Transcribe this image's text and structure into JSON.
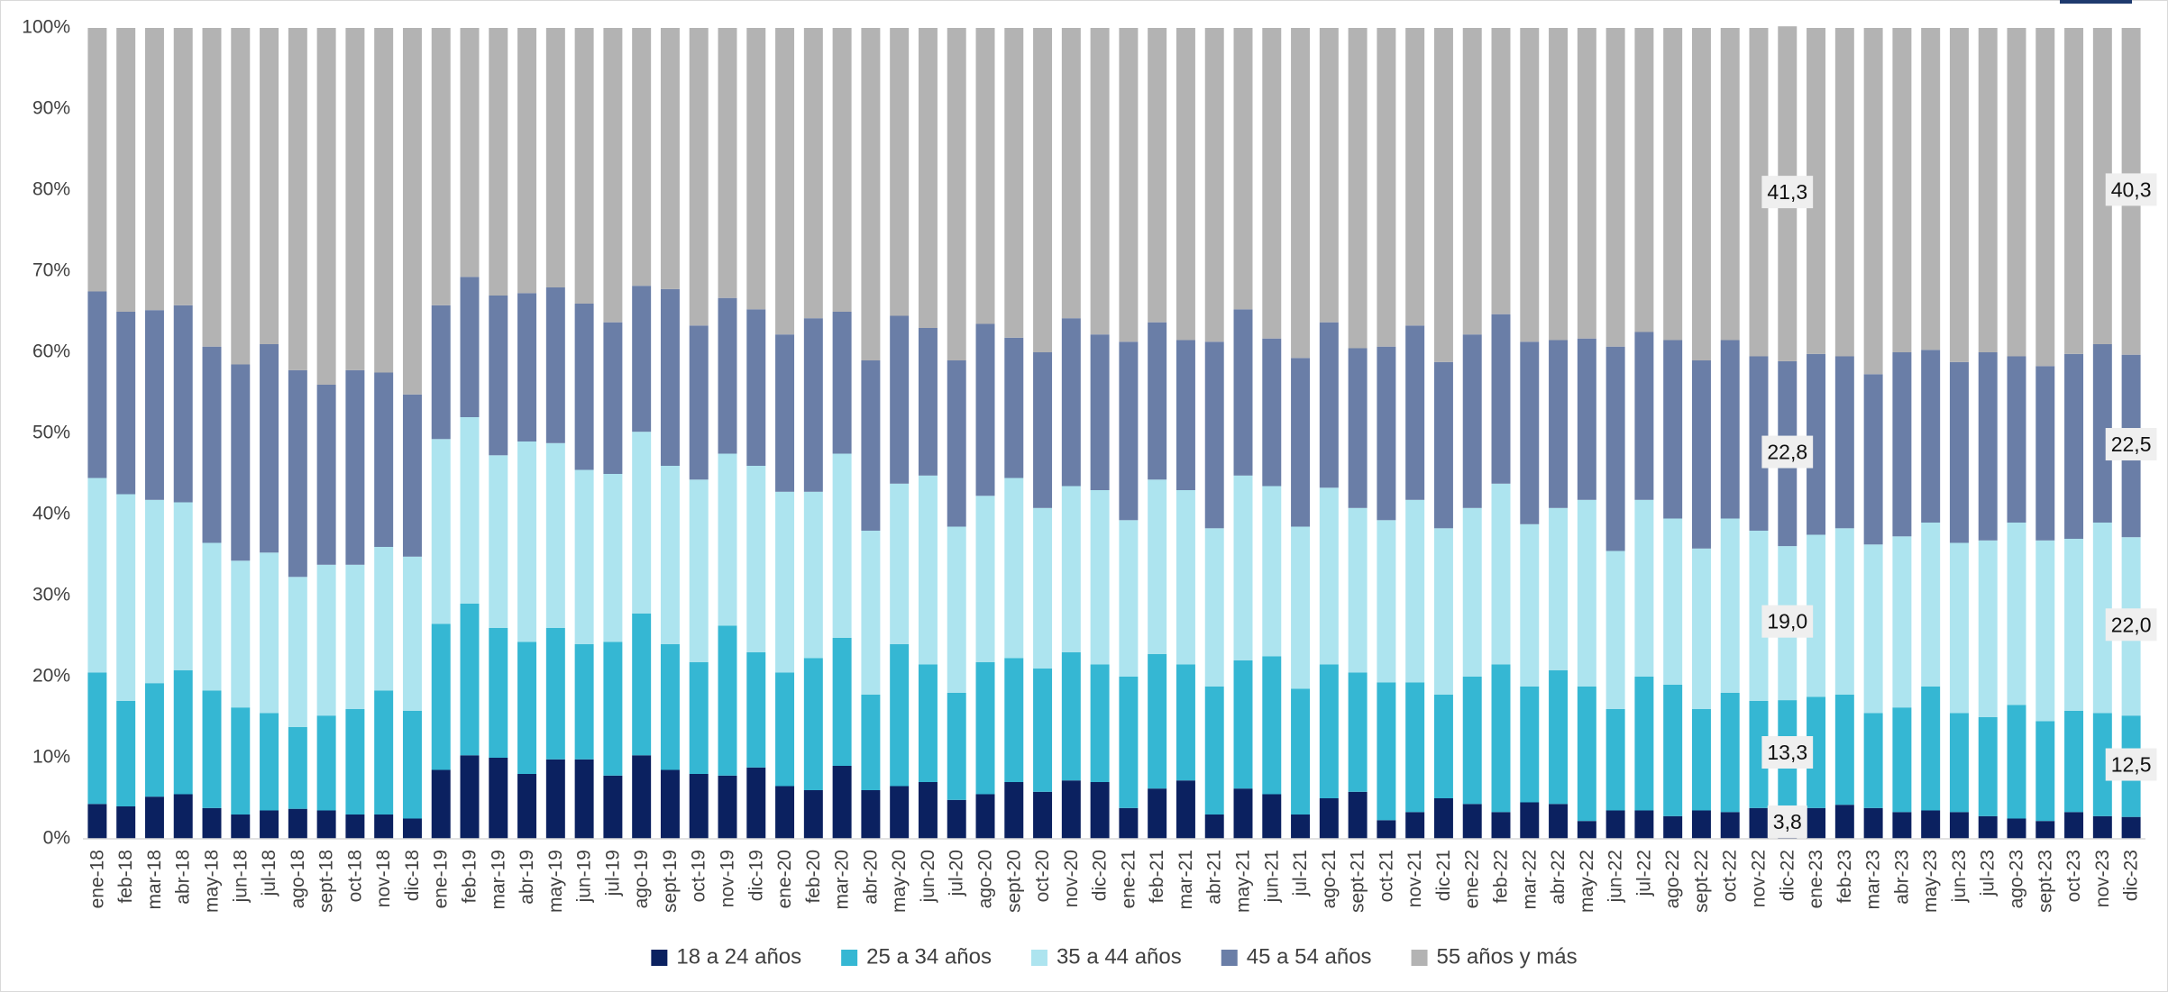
{
  "chart_data": {
    "type": "stacked_bar_percent",
    "categories": [
      "ene-18",
      "feb-18",
      "mar-18",
      "abr-18",
      "may-18",
      "jun-18",
      "jul-18",
      "ago-18",
      "sept-18",
      "oct-18",
      "nov-18",
      "dic-18",
      "ene-19",
      "feb-19",
      "mar-19",
      "abr-19",
      "may-19",
      "jun-19",
      "jul-19",
      "ago-19",
      "sept-19",
      "oct-19",
      "nov-19",
      "dic-19",
      "ene-20",
      "feb-20",
      "mar-20",
      "abr-20",
      "may-20",
      "jun-20",
      "jul-20",
      "ago-20",
      "sept-20",
      "oct-20",
      "nov-20",
      "dic-20",
      "ene-21",
      "feb-21",
      "mar-21",
      "abr-21",
      "may-21",
      "jun-21",
      "jul-21",
      "ago-21",
      "sept-21",
      "oct-21",
      "nov-21",
      "dic-21",
      "ene-22",
      "feb-22",
      "mar-22",
      "abr-22",
      "may-22",
      "jun-22",
      "jul-22",
      "ago-22",
      "sept-22",
      "oct-22",
      "nov-22",
      "dic-22",
      "ene-23",
      "feb-23",
      "mar-23",
      "abr-23",
      "may-23",
      "jun-23",
      "jul-23",
      "ago-23",
      "sept-23",
      "oct-23",
      "nov-23",
      "dic-23"
    ],
    "series": [
      {
        "name": "18 a 24 años",
        "color": "#0b2160",
        "values": [
          4.3,
          4.0,
          5.2,
          5.5,
          3.8,
          3.0,
          3.5,
          3.7,
          3.5,
          3.0,
          3.0,
          2.5,
          8.5,
          10.3,
          10.0,
          8.0,
          9.8,
          9.8,
          7.8,
          10.3,
          8.5,
          8.0,
          7.8,
          8.8,
          6.5,
          6.0,
          9.0,
          6.0,
          6.5,
          7.0,
          4.8,
          5.5,
          7.0,
          5.8,
          7.2,
          7.0,
          3.8,
          6.2,
          7.2,
          3.0,
          6.2,
          5.5,
          3.0,
          5.0,
          5.8,
          2.3,
          3.3,
          5.0,
          4.3,
          3.3,
          4.5,
          4.3,
          2.2,
          3.5,
          3.5,
          2.8,
          3.5,
          3.3,
          3.8,
          3.8,
          3.8,
          4.2,
          3.8,
          3.3,
          3.5,
          3.3,
          2.8,
          2.5,
          2.2,
          3.3,
          2.8,
          2.7
        ],
        "value_labels": [
          null,
          null,
          null,
          null,
          null,
          null,
          null,
          null,
          null,
          null,
          null,
          null,
          null,
          null,
          null,
          null,
          null,
          null,
          null,
          null,
          null,
          null,
          null,
          null,
          null,
          null,
          null,
          null,
          null,
          null,
          null,
          null,
          null,
          null,
          null,
          null,
          null,
          null,
          null,
          null,
          null,
          null,
          null,
          null,
          null,
          null,
          null,
          null,
          null,
          null,
          null,
          null,
          null,
          null,
          null,
          null,
          null,
          null,
          null,
          "3,8",
          null,
          null,
          null,
          null,
          null,
          null,
          null,
          null,
          null,
          null,
          null,
          null
        ]
      },
      {
        "name": "25 a 34 años",
        "color": "#35b7d3",
        "values": [
          16.2,
          13.0,
          14.0,
          15.3,
          14.5,
          13.2,
          12.0,
          10.1,
          11.7,
          13.0,
          15.3,
          13.3,
          18.0,
          18.7,
          16.0,
          16.3,
          16.2,
          14.2,
          16.5,
          17.5,
          15.5,
          13.8,
          18.5,
          14.2,
          14.0,
          16.3,
          15.8,
          11.8,
          17.5,
          14.5,
          13.2,
          16.3,
          15.3,
          15.2,
          15.8,
          14.5,
          16.2,
          16.6,
          14.3,
          15.8,
          15.8,
          17.0,
          15.5,
          16.5,
          14.7,
          17.0,
          16.0,
          12.8,
          15.7,
          18.2,
          14.3,
          16.5,
          16.6,
          12.5,
          16.5,
          16.2,
          12.5,
          14.7,
          13.2,
          13.3,
          13.7,
          13.6,
          11.7,
          12.9,
          15.3,
          12.2,
          12.2,
          14.0,
          12.3,
          12.5,
          12.7,
          12.5
        ],
        "value_labels": [
          null,
          null,
          null,
          null,
          null,
          null,
          null,
          null,
          null,
          null,
          null,
          null,
          null,
          null,
          null,
          null,
          null,
          null,
          null,
          null,
          null,
          null,
          null,
          null,
          null,
          null,
          null,
          null,
          null,
          null,
          null,
          null,
          null,
          null,
          null,
          null,
          null,
          null,
          null,
          null,
          null,
          null,
          null,
          null,
          null,
          null,
          null,
          null,
          null,
          null,
          null,
          null,
          null,
          null,
          null,
          null,
          null,
          null,
          null,
          "13,3",
          null,
          null,
          null,
          null,
          null,
          null,
          null,
          null,
          null,
          null,
          null,
          "12,5"
        ]
      },
      {
        "name": "35 a 44 años",
        "color": "#ade4ef",
        "values": [
          24.0,
          25.5,
          22.6,
          20.7,
          18.2,
          18.1,
          19.8,
          18.5,
          18.6,
          17.8,
          17.7,
          19.0,
          22.8,
          23.0,
          21.3,
          24.7,
          22.8,
          21.5,
          20.7,
          22.4,
          22.0,
          22.5,
          21.2,
          23.0,
          22.3,
          20.5,
          22.7,
          20.2,
          19.8,
          23.3,
          20.5,
          20.5,
          22.2,
          19.8,
          20.5,
          21.5,
          19.3,
          21.5,
          21.5,
          19.5,
          22.8,
          21.0,
          20.0,
          21.8,
          20.3,
          20.0,
          22.5,
          20.5,
          20.8,
          22.3,
          20.0,
          20.0,
          23.0,
          19.5,
          21.8,
          20.5,
          19.8,
          21.5,
          21.0,
          19.0,
          20.0,
          20.5,
          20.8,
          21.1,
          20.2,
          21.0,
          21.8,
          22.5,
          22.3,
          21.2,
          23.5,
          22.0
        ],
        "value_labels": [
          null,
          null,
          null,
          null,
          null,
          null,
          null,
          null,
          null,
          null,
          null,
          null,
          null,
          null,
          null,
          null,
          null,
          null,
          null,
          null,
          null,
          null,
          null,
          null,
          null,
          null,
          null,
          null,
          null,
          null,
          null,
          null,
          null,
          null,
          null,
          null,
          null,
          null,
          null,
          null,
          null,
          null,
          null,
          null,
          null,
          null,
          null,
          null,
          null,
          null,
          null,
          null,
          null,
          null,
          null,
          null,
          null,
          null,
          null,
          "19,0",
          null,
          null,
          null,
          null,
          null,
          null,
          null,
          null,
          null,
          null,
          null,
          "22,0"
        ]
      },
      {
        "name": "45 a 54 años",
        "color": "#6a7ea7",
        "values": [
          23.0,
          22.5,
          23.4,
          24.3,
          24.2,
          24.2,
          25.7,
          25.5,
          22.2,
          24.0,
          21.5,
          20.0,
          16.5,
          17.3,
          19.7,
          18.3,
          19.2,
          20.5,
          18.7,
          18.0,
          21.8,
          19.0,
          19.2,
          19.3,
          19.4,
          21.4,
          17.5,
          21.0,
          20.7,
          18.2,
          20.5,
          21.2,
          17.3,
          19.2,
          20.7,
          19.2,
          22.0,
          19.4,
          18.5,
          23.0,
          20.5,
          18.2,
          20.8,
          20.4,
          19.7,
          21.4,
          21.5,
          20.5,
          21.4,
          20.9,
          22.5,
          20.7,
          19.9,
          25.2,
          20.7,
          22.0,
          23.2,
          22.0,
          21.5,
          22.8,
          22.3,
          21.2,
          21.0,
          22.7,
          21.3,
          22.3,
          23.2,
          20.5,
          21.5,
          22.8,
          22.0,
          22.5
        ],
        "value_labels": [
          null,
          null,
          null,
          null,
          null,
          null,
          null,
          null,
          null,
          null,
          null,
          null,
          null,
          null,
          null,
          null,
          null,
          null,
          null,
          null,
          null,
          null,
          null,
          null,
          null,
          null,
          null,
          null,
          null,
          null,
          null,
          null,
          null,
          null,
          null,
          null,
          null,
          null,
          null,
          null,
          null,
          null,
          null,
          null,
          null,
          null,
          null,
          null,
          null,
          null,
          null,
          null,
          null,
          null,
          null,
          null,
          null,
          null,
          null,
          "22,8",
          null,
          null,
          null,
          null,
          null,
          null,
          null,
          null,
          null,
          null,
          null,
          "22,5"
        ]
      },
      {
        "name": "55 años y más",
        "color": "#b3b3b3",
        "values": [
          32.5,
          35.0,
          34.8,
          34.2,
          39.3,
          41.5,
          39.0,
          42.2,
          44.0,
          42.2,
          42.5,
          45.2,
          34.2,
          30.7,
          33.0,
          32.7,
          32.0,
          34.0,
          36.3,
          31.8,
          32.2,
          36.7,
          33.3,
          34.7,
          37.8,
          35.8,
          35.0,
          41.0,
          35.5,
          37.0,
          41.0,
          36.5,
          38.2,
          40.0,
          35.8,
          37.8,
          38.7,
          36.3,
          38.5,
          38.7,
          34.7,
          38.3,
          40.7,
          36.3,
          39.5,
          39.3,
          36.7,
          41.2,
          37.8,
          35.3,
          38.7,
          38.5,
          38.3,
          39.3,
          37.5,
          38.5,
          41.0,
          38.5,
          40.5,
          41.3,
          40.2,
          40.5,
          42.7,
          40.0,
          39.7,
          41.2,
          40.0,
          40.5,
          41.7,
          40.2,
          39.0,
          40.3
        ],
        "value_labels": [
          null,
          null,
          null,
          null,
          null,
          null,
          null,
          null,
          null,
          null,
          null,
          null,
          null,
          null,
          null,
          null,
          null,
          null,
          null,
          null,
          null,
          null,
          null,
          null,
          null,
          null,
          null,
          null,
          null,
          null,
          null,
          null,
          null,
          null,
          null,
          null,
          null,
          null,
          null,
          null,
          null,
          null,
          null,
          null,
          null,
          null,
          null,
          null,
          null,
          null,
          null,
          null,
          null,
          null,
          null,
          null,
          null,
          null,
          null,
          "41,3",
          null,
          null,
          null,
          null,
          null,
          null,
          null,
          null,
          null,
          null,
          null,
          "40,3"
        ]
      }
    ],
    "ylim": [
      0,
      100
    ],
    "yticks": [
      {
        "value": 0,
        "label": "0%"
      },
      {
        "value": 10,
        "label": "10%"
      },
      {
        "value": 20,
        "label": "20%"
      },
      {
        "value": 30,
        "label": "30%"
      },
      {
        "value": 40,
        "label": "40%"
      },
      {
        "value": 50,
        "label": "50%"
      },
      {
        "value": 60,
        "label": "60%"
      },
      {
        "value": 70,
        "label": "70%"
      },
      {
        "value": 80,
        "label": "80%"
      },
      {
        "value": 90,
        "label": "90%"
      },
      {
        "value": 100,
        "label": "100%"
      }
    ],
    "grid": false,
    "legend": "bottom"
  }
}
